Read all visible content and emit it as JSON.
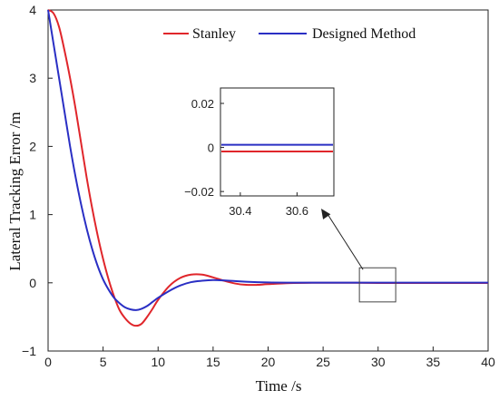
{
  "chart_data": {
    "type": "line",
    "xlabel": "Time /s",
    "ylabel": "Lateral Tracking Error /m",
    "xlim": [
      0,
      40
    ],
    "ylim": [
      -1,
      4
    ],
    "xticks": [
      0,
      5,
      10,
      15,
      20,
      25,
      30,
      35,
      40
    ],
    "yticks": [
      -1,
      0,
      1,
      2,
      3,
      4
    ],
    "grid": false,
    "legend_position": "top-right",
    "series": [
      {
        "name": "Stanley",
        "color": "#e0262b",
        "x": [
          0,
          0.5,
          1,
          1.5,
          2,
          2.5,
          3,
          3.5,
          4,
          4.5,
          5,
          5.5,
          6,
          6.5,
          7,
          7.5,
          8,
          8.5,
          9,
          9.5,
          10,
          11,
          12,
          13,
          14,
          15,
          16,
          17,
          18,
          19,
          20,
          22,
          24,
          26,
          28,
          30,
          32,
          34,
          36,
          38,
          40
        ],
        "values": [
          4.0,
          3.95,
          3.75,
          3.4,
          3.0,
          2.55,
          2.05,
          1.55,
          1.1,
          0.7,
          0.35,
          0.05,
          -0.2,
          -0.4,
          -0.52,
          -0.6,
          -0.63,
          -0.6,
          -0.5,
          -0.38,
          -0.25,
          -0.05,
          0.07,
          0.12,
          0.12,
          0.08,
          0.03,
          -0.01,
          -0.03,
          -0.03,
          -0.02,
          -0.005,
          0.0,
          0.0,
          0.0,
          -0.002,
          -0.002,
          -0.002,
          -0.002,
          -0.002,
          -0.002
        ]
      },
      {
        "name": "Designed Method",
        "color": "#2a2fc4",
        "x": [
          0,
          0.5,
          1,
          1.5,
          2,
          2.5,
          3,
          3.5,
          4,
          4.5,
          5,
          5.5,
          6,
          6.5,
          7,
          7.5,
          8,
          8.5,
          9,
          9.5,
          10,
          11,
          12,
          13,
          14,
          15,
          16,
          17,
          18,
          20,
          22,
          24,
          26,
          28,
          30,
          32,
          34,
          36,
          38,
          40
        ],
        "values": [
          4.0,
          3.5,
          3.0,
          2.5,
          2.0,
          1.55,
          1.15,
          0.8,
          0.5,
          0.25,
          0.05,
          -0.1,
          -0.22,
          -0.3,
          -0.36,
          -0.39,
          -0.4,
          -0.38,
          -0.34,
          -0.28,
          -0.22,
          -0.12,
          -0.04,
          0.01,
          0.03,
          0.04,
          0.035,
          0.025,
          0.015,
          0.005,
          0.002,
          0.002,
          0.002,
          0.002,
          0.002,
          0.002,
          0.002,
          0.002,
          0.002,
          0.002
        ]
      }
    ],
    "zoom_box": {
      "xlim": [
        28.3,
        31.6
      ],
      "ylim": [
        -0.28,
        0.22
      ]
    },
    "inset": {
      "xlim": [
        30.33,
        30.73
      ],
      "ylim": [
        -0.022,
        0.027
      ],
      "xticks": [
        30.4,
        30.6
      ],
      "xtick_labels": [
        "30.4",
        "30.6"
      ],
      "yticks": [
        0.02,
        0,
        -0.02
      ],
      "ytick_labels": [
        "0.02",
        "0",
        "−0.02"
      ],
      "levels": [
        {
          "series": "Designed Method",
          "value": 0.0012
        },
        {
          "series": "Stanley",
          "value": -0.0018
        }
      ]
    }
  }
}
